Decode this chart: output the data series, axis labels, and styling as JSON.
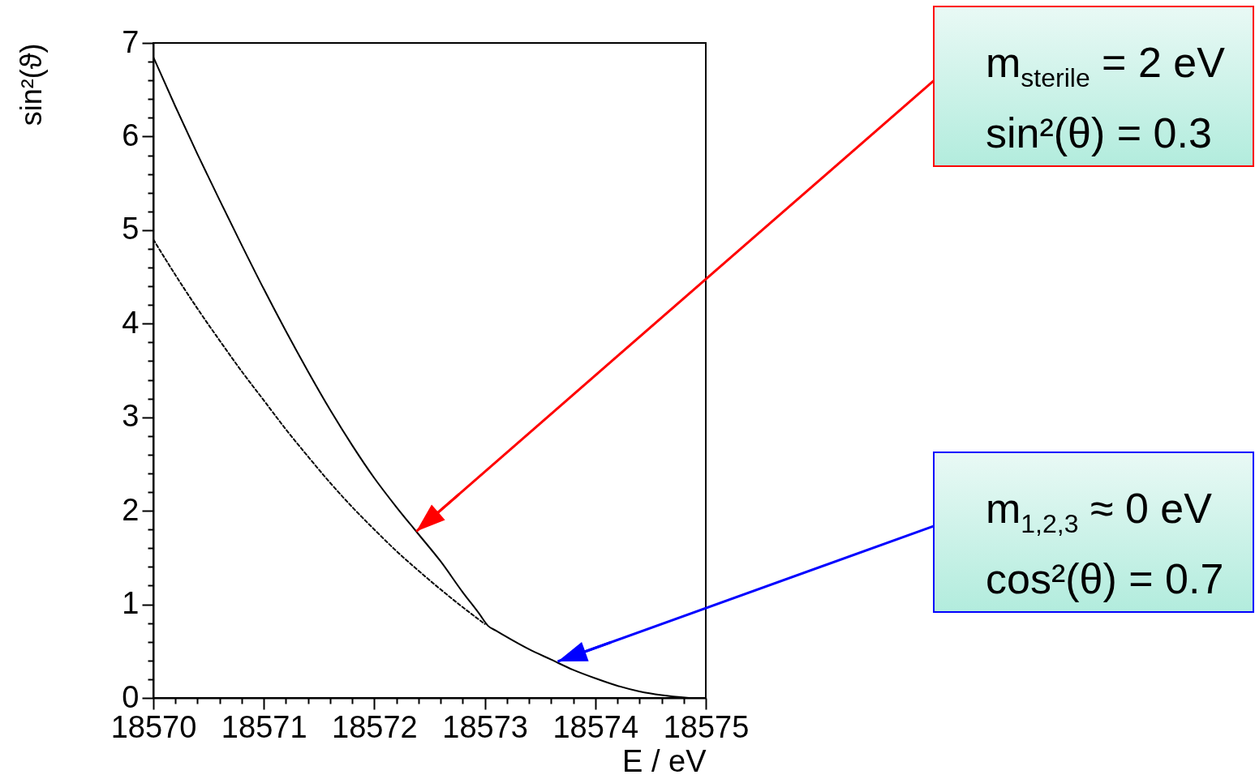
{
  "chart_data": {
    "type": "line",
    "xlabel": "E / eV",
    "ylabel": "sin²(ϑ)",
    "xlim": [
      18570,
      18575
    ],
    "ylim": [
      0,
      7
    ],
    "xticks": [
      18570,
      {
        "value": 18570.2,
        "label": null
      },
      {
        "value": 18570.4,
        "label": null
      },
      {
        "value": 18570.6,
        "label": null
      },
      {
        "value": 18570.8,
        "label": null
      },
      18571,
      {
        "value": 18571.2,
        "label": null
      },
      {
        "value": 18571.4,
        "label": null
      },
      {
        "value": 18571.6,
        "label": null
      },
      {
        "value": 18571.8,
        "label": null
      },
      18572,
      {
        "value": 18572.2,
        "label": null
      },
      {
        "value": 18572.4,
        "label": null
      },
      {
        "value": 18572.6,
        "label": null
      },
      {
        "value": 18572.8,
        "label": null
      },
      18573,
      {
        "value": 18573.2,
        "label": null
      },
      {
        "value": 18573.4,
        "label": null
      },
      {
        "value": 18573.6,
        "label": null
      },
      {
        "value": 18573.8,
        "label": null
      },
      18574,
      {
        "value": 18574.2,
        "label": null
      },
      {
        "value": 18574.4,
        "label": null
      },
      {
        "value": 18574.6,
        "label": null
      },
      {
        "value": 18574.8,
        "label": null
      },
      18575
    ],
    "yticks": [
      0,
      {
        "value": 0.2,
        "label": null
      },
      {
        "value": 0.4,
        "label": null
      },
      {
        "value": 0.6,
        "label": null
      },
      {
        "value": 0.8,
        "label": null
      },
      1,
      {
        "value": 1.2,
        "label": null
      },
      {
        "value": 1.4,
        "label": null
      },
      {
        "value": 1.6,
        "label": null
      },
      {
        "value": 1.8,
        "label": null
      },
      2,
      {
        "value": 2.2,
        "label": null
      },
      {
        "value": 2.4,
        "label": null
      },
      {
        "value": 2.6,
        "label": null
      },
      {
        "value": 2.8,
        "label": null
      },
      3,
      {
        "value": 3.2,
        "label": null
      },
      {
        "value": 3.4,
        "label": null
      },
      {
        "value": 3.6,
        "label": null
      },
      {
        "value": 3.8,
        "label": null
      },
      4,
      {
        "value": 4.2,
        "label": null
      },
      {
        "value": 4.4,
        "label": null
      },
      {
        "value": 4.6,
        "label": null
      },
      {
        "value": 4.8,
        "label": null
      },
      5,
      {
        "value": 5.2,
        "label": null
      },
      {
        "value": 5.4,
        "label": null
      },
      {
        "value": 5.6,
        "label": null
      },
      {
        "value": 5.8,
        "label": null
      },
      6,
      {
        "value": 6.2,
        "label": null
      },
      {
        "value": 6.4,
        "label": null
      },
      {
        "value": 6.6,
        "label": null
      },
      {
        "value": 6.8,
        "label": null
      },
      7
    ],
    "grid": false,
    "series": [
      {
        "color": "#000000",
        "line_style": "solid",
        "x": [
          18570.0,
          18570.2,
          18570.4,
          18570.6,
          18570.8,
          18571.0,
          18571.2,
          18571.4,
          18571.6,
          18571.8,
          18572.0,
          18572.2,
          18572.4,
          18572.6,
          18572.8,
          18572.95,
          18573.03,
          18573.1,
          18573.2,
          18573.4,
          18573.6,
          18573.8,
          18574.0,
          18574.2,
          18574.4,
          18574.6,
          18574.85
        ],
        "values": [
          6.85,
          6.32,
          5.81,
          5.32,
          4.84,
          4.37,
          3.92,
          3.49,
          3.08,
          2.7,
          2.35,
          2.04,
          1.75,
          1.46,
          1.13,
          0.9,
          0.77,
          0.72,
          0.65,
          0.52,
          0.41,
          0.3,
          0.21,
          0.13,
          0.07,
          0.03,
          0.0
        ]
      },
      {
        "color": "#000000",
        "line_style": "dotted",
        "x": [
          18570.0,
          18570.2,
          18570.4,
          18570.6,
          18570.8,
          18571.0,
          18571.2,
          18571.4,
          18571.6,
          18571.8,
          18572.0,
          18572.2,
          18572.4,
          18572.6,
          18572.8,
          18573.0
        ],
        "values": [
          4.9,
          4.52,
          4.16,
          3.82,
          3.49,
          3.18,
          2.87,
          2.58,
          2.3,
          2.04,
          1.8,
          1.57,
          1.36,
          1.16,
          0.97,
          0.79
        ]
      }
    ],
    "annotations": [
      {
        "text": "m$_{sterile}$ = 2 eV\nsin²(θ) = 0.3",
        "x": 18572.38,
        "y": 1.78
      },
      {
        "text": "m$_{1,2,3}$ ≈ 0 eV\ncos²(θ) = 0.7",
        "x": 18573.66,
        "y": 0.39
      }
    ]
  }
}
